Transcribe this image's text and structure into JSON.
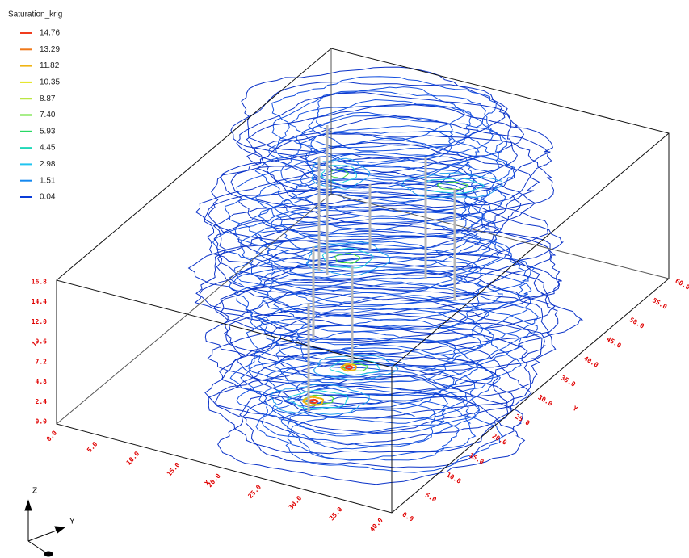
{
  "legend": {
    "title": "Saturation_krig",
    "items": [
      {
        "label": "14.76",
        "color": "#f03c1e"
      },
      {
        "label": "13.29",
        "color": "#f07818"
      },
      {
        "label": "11.82",
        "color": "#f0b414"
      },
      {
        "label": "10.35",
        "color": "#e4e418"
      },
      {
        "label": "8.87",
        "color": "#a8e014"
      },
      {
        "label": "7.40",
        "color": "#50dc14"
      },
      {
        "label": "5.93",
        "color": "#28d864"
      },
      {
        "label": "4.45",
        "color": "#20d8b8"
      },
      {
        "label": "2.98",
        "color": "#20c4f0"
      },
      {
        "label": "1.51",
        "color": "#1488f0"
      },
      {
        "label": "0.04",
        "color": "#0a3cd8"
      }
    ]
  },
  "axes": {
    "z": {
      "title": "Z",
      "ticks": [
        "16.8",
        "14.4",
        "12.0",
        "9.6",
        "7.2",
        "4.8",
        "2.4",
        "0.0"
      ]
    },
    "x": {
      "title": "X",
      "ticks": [
        "0.0",
        "5.0",
        "10.0",
        "15.0",
        "20.0",
        "25.0",
        "30.0",
        "35.0",
        "40.0"
      ]
    },
    "y": {
      "title": "Y",
      "ticks": [
        "0.0",
        "5.0",
        "10.0",
        "15.0",
        "20.0",
        "25.0",
        "30.0",
        "35.0",
        "40.0",
        "45.0",
        "50.0",
        "55.0",
        "60.0"
      ]
    }
  },
  "triad": {
    "z": "Z",
    "y": "Y"
  }
}
